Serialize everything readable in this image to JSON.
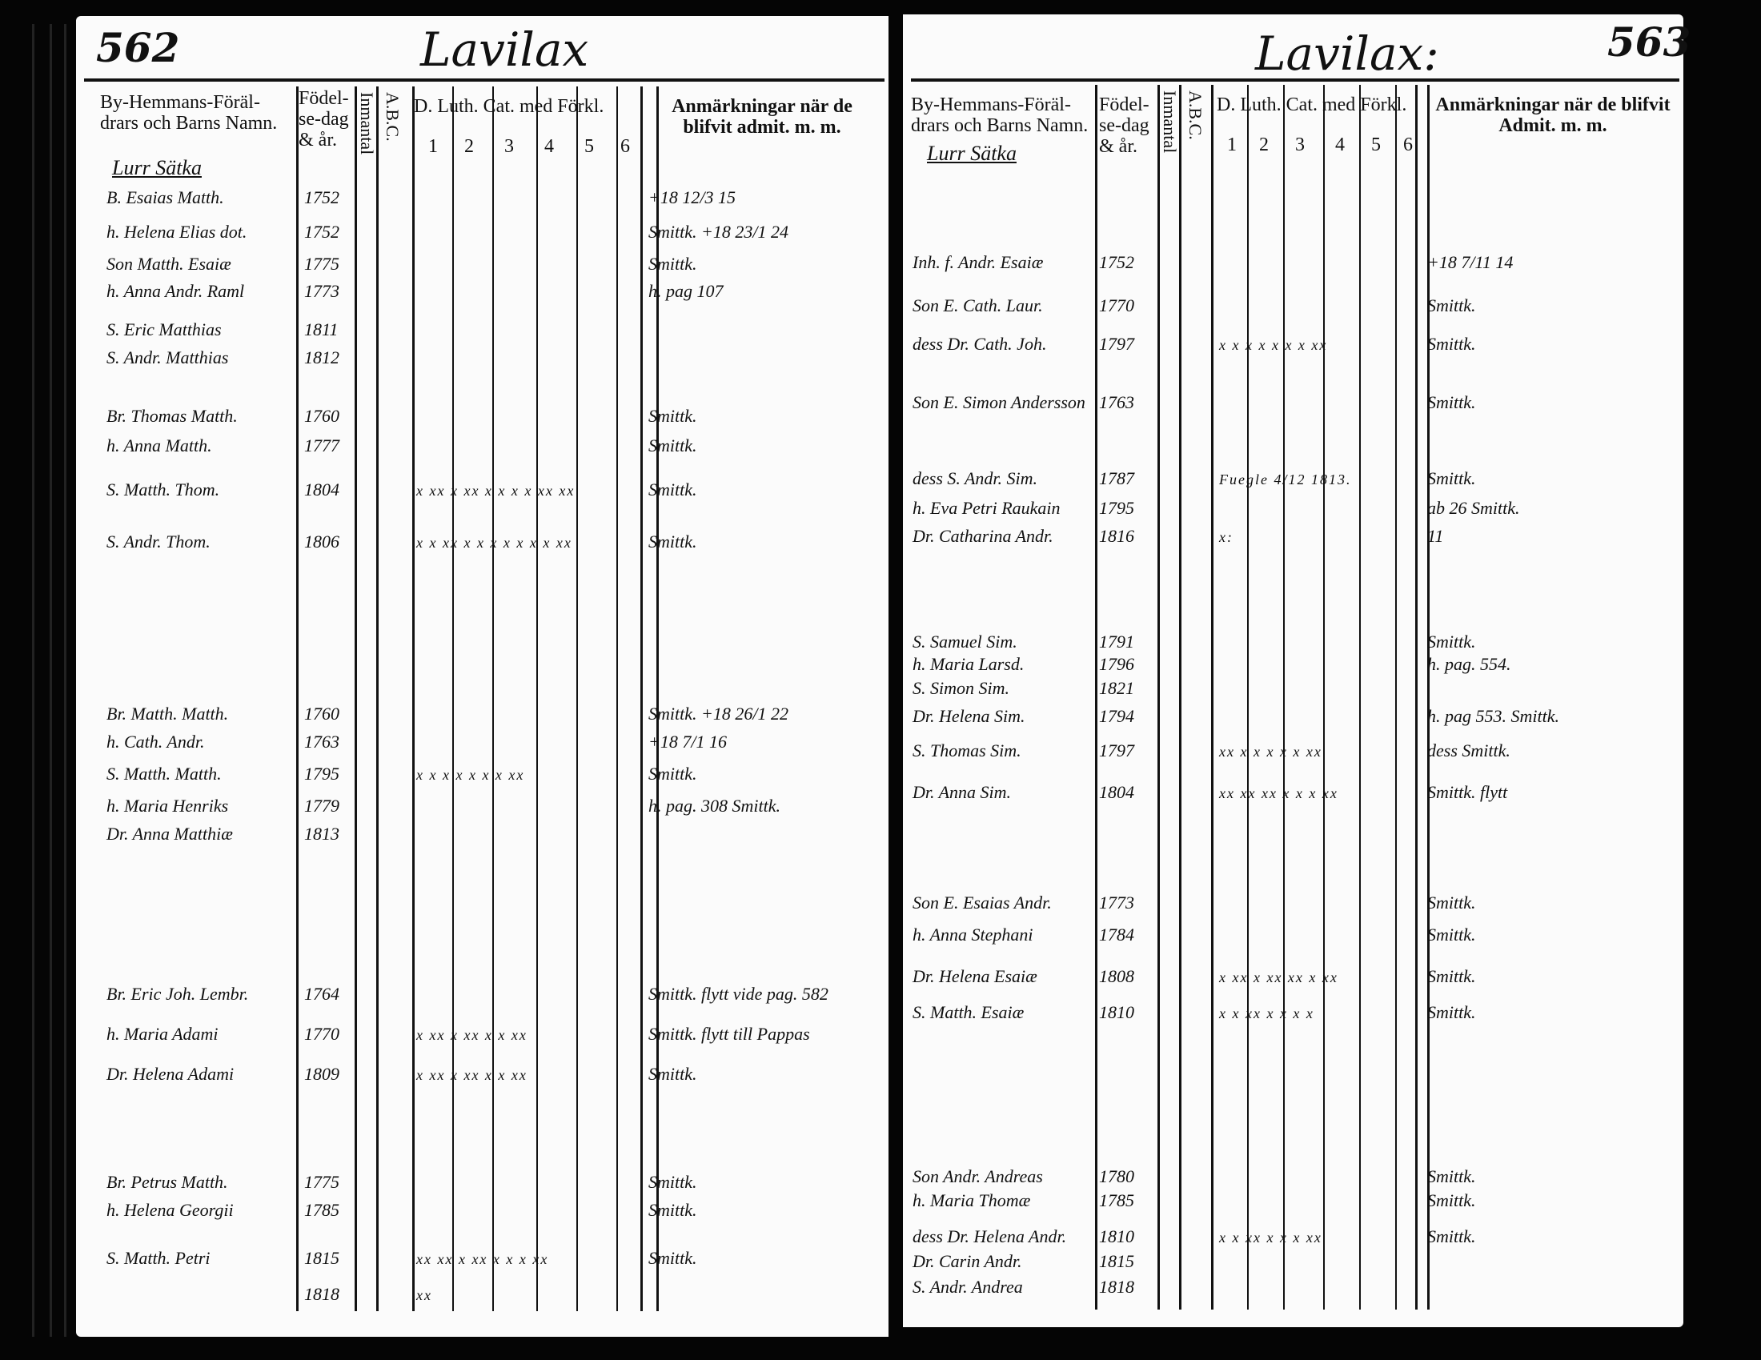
{
  "left_page": {
    "page_number": "562",
    "title": "Lavilax",
    "headers": {
      "names": "By-Hemmans-Föräl- drars och Barns Namn.",
      "birth": "Födel- se-dag & år.",
      "inmantal": "Inmantal",
      "abc": "A.B.C.",
      "catechism": "D. Luth. Cat. med Förkl.",
      "cat_cols": [
        "1",
        "2",
        "3",
        "4",
        "5",
        "6"
      ],
      "remarks": "Anmärkningar när de blifvit admit. m. m."
    },
    "farm_heading": "Lurr Sätka",
    "rows": [
      {
        "name": "B. Esaias Matth.",
        "date": "1752",
        "marks": "",
        "remark": "+18 12/3 15"
      },
      {
        "name": "h. Helena Elias dot.",
        "date": "1752",
        "marks": "",
        "remark": "Smittk. +18 23/1 24"
      },
      {
        "name": "Son Matth. Esaiæ",
        "date": "1775",
        "marks": "",
        "remark": "Smittk."
      },
      {
        "name": "h. Anna Andr. Raml",
        "date": "1773",
        "marks": "",
        "remark": "h. pag 107"
      },
      {
        "name": "S. Eric Matthias",
        "date": "1811",
        "marks": "",
        "remark": ""
      },
      {
        "name": "S. Andr. Matthias",
        "date": "1812",
        "marks": "",
        "remark": ""
      },
      {
        "name": "Br. Thomas Matth.",
        "date": "1760",
        "marks": "",
        "remark": "Smittk."
      },
      {
        "name": "h. Anna Matth.",
        "date": "1777",
        "marks": "",
        "remark": "Smittk."
      },
      {
        "name": "S. Matth. Thom.",
        "date": "1804",
        "marks": "x xx  x xx  x x  x x  xx xx",
        "remark": "Smittk."
      },
      {
        "name": "S. Andr. Thom.",
        "date": "1806",
        "marks": "x x  xx x x  x x  x x  x xx",
        "remark": "Smittk."
      },
      {
        "name": "Br. Matth. Matth.",
        "date": "1760",
        "marks": "",
        "remark": "Smittk. +18 26/1 22"
      },
      {
        "name": "h. Cath. Andr.",
        "date": "1763",
        "marks": "",
        "remark": "+18 7/1 16"
      },
      {
        "name": "S. Matth. Matth.",
        "date": "1795",
        "marks": "x x x  x  x  x  x  xx",
        "remark": "Smittk."
      },
      {
        "name": "h. Maria Henriks",
        "date": "1779",
        "marks": "",
        "remark": "h. pag. 308 Smittk."
      },
      {
        "name": "Dr. Anna Matthiæ",
        "date": "1813",
        "marks": "",
        "remark": ""
      },
      {
        "name": "Br. Eric Joh. Lembr.",
        "date": "1764",
        "marks": "",
        "remark": "Smittk. flytt vide pag. 582"
      },
      {
        "name": "h. Maria Adami",
        "date": "1770",
        "marks": "x xx  x  xx  x  x  xx",
        "remark": "Smittk. flytt till Pappas"
      },
      {
        "name": "Dr. Helena Adami",
        "date": "1809",
        "marks": "x xx  x  xx  x  x  xx",
        "remark": "Smittk."
      },
      {
        "name": "Br. Petrus Matth.",
        "date": "1775",
        "marks": "",
        "remark": "Smittk."
      },
      {
        "name": "h. Helena Georgii",
        "date": "1785",
        "marks": "",
        "remark": "Smittk."
      },
      {
        "name": "S. Matth. Petri",
        "date": "1815",
        "marks": "xx  xx  x xx  x x  x xx",
        "remark": "Smittk."
      },
      {
        "name": "",
        "date": "1818",
        "marks": "xx",
        "remark": ""
      }
    ]
  },
  "right_page": {
    "page_number": "563",
    "title": "Lavilax:",
    "headers": {
      "names": "By-Hemmans-Föräl- drars och Barns Namn.",
      "birth": "Födel- se-dag & år.",
      "inmantal": "Inmantal",
      "abc": "A.B.C.",
      "catechism": "D. Luth. Cat. med Förkl.",
      "cat_cols": [
        "1",
        "2",
        "3",
        "4",
        "5",
        "6"
      ],
      "remarks": "Anmärkningar när de blifvit Admit. m. m."
    },
    "farm_heading": "Lurr Sätka",
    "rows": [
      {
        "name": "Inh. f. Andr. Esaiæ",
        "date": "1752",
        "marks": "",
        "remark": "+18 7/11 14"
      },
      {
        "name": "Son E. Cath. Laur.",
        "date": "1770",
        "marks": "",
        "remark": "Smittk."
      },
      {
        "name": "dess Dr. Cath. Joh.",
        "date": "1797",
        "marks": "x x x  x  x  x  x  xx",
        "remark": "Smittk."
      },
      {
        "name": "Son E. Simon Andersson",
        "date": "1763",
        "marks": "",
        "remark": "Smittk."
      },
      {
        "name": "dess S. Andr. Sim.",
        "date": "1787",
        "marks": "Fuegle 4/12 1813.",
        "remark": "Smittk."
      },
      {
        "name": "h. Eva Petri Raukain",
        "date": "1795",
        "marks": "",
        "remark": "ab 26 Smittk."
      },
      {
        "name": "Dr. Catharina Andr.",
        "date": "1816",
        "marks": "x:",
        "remark": "11"
      },
      {
        "name": "S. Samuel Sim.",
        "date": "1791",
        "marks": "",
        "remark": "Smittk."
      },
      {
        "name": "h. Maria Larsd.",
        "date": "1796",
        "marks": "",
        "remark": "h. pag. 554."
      },
      {
        "name": "S. Simon Sim.",
        "date": "1821",
        "marks": "",
        "remark": ""
      },
      {
        "name": "Dr. Helena Sim.",
        "date": "1794",
        "marks": "",
        "remark": "h. pag 553. Smittk."
      },
      {
        "name": "S. Thomas Sim.",
        "date": "1797",
        "marks": "xx x  x  x  x  x  xx",
        "remark": "dess Smittk."
      },
      {
        "name": "Dr. Anna Sim.",
        "date": "1804",
        "marks": "xx xx xx  x  x  x  xx",
        "remark": "Smittk. flytt"
      },
      {
        "name": "Son E. Esaias Andr.",
        "date": "1773",
        "marks": "",
        "remark": "Smittk."
      },
      {
        "name": "h. Anna Stephani",
        "date": "1784",
        "marks": "",
        "remark": "Smittk."
      },
      {
        "name": "Dr. Helena Esaiæ",
        "date": "1808",
        "marks": "x xx x xx xx x xx",
        "remark": "Smittk."
      },
      {
        "name": "S. Matth. Esaiæ",
        "date": "1810",
        "marks": "x x xx x x x x",
        "remark": "Smittk."
      },
      {
        "name": "Son Andr. Andreas",
        "date": "1780",
        "marks": "",
        "remark": "Smittk."
      },
      {
        "name": "h. Maria Thomæ",
        "date": "1785",
        "marks": "",
        "remark": "Smittk."
      },
      {
        "name": "dess Dr. Helena Andr.",
        "date": "1810",
        "marks": "x  x xx  x  x  x xx",
        "remark": "Smittk."
      },
      {
        "name": "Dr. Carin Andr.",
        "date": "1815",
        "marks": "",
        "remark": ""
      },
      {
        "name": "S. Andr. Andrea",
        "date": "1818",
        "marks": "",
        "remark": ""
      }
    ]
  }
}
